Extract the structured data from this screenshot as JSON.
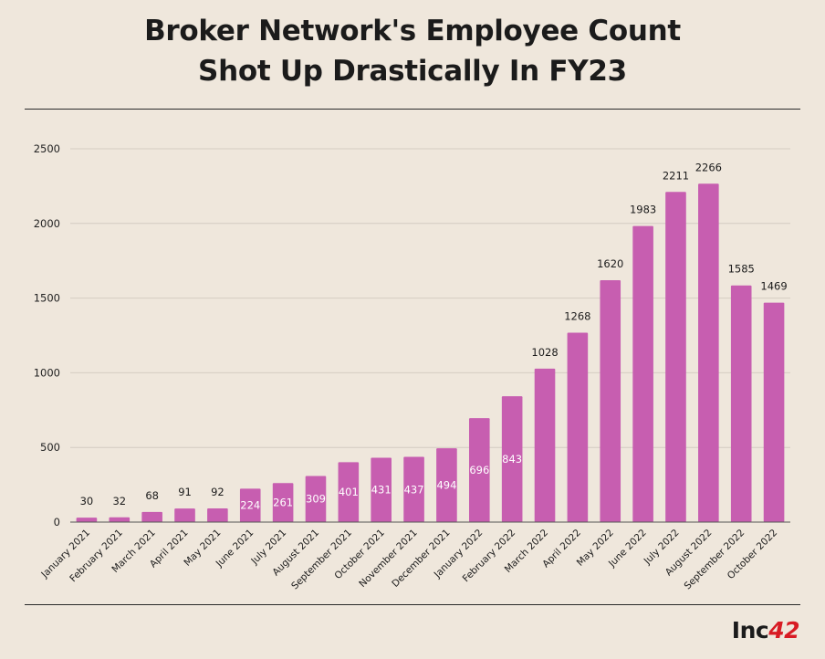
{
  "header": {
    "title_line1": "Broker Network's Employee Count",
    "title_line2": "Shot Up Drastically In FY23"
  },
  "brand": {
    "logo_text": "Inc",
    "logo_number": "42",
    "logo_color": "#d81b24"
  },
  "colors": {
    "bar": "#c75eb0",
    "background": "#efe7dc",
    "grid": "#d4ccc2"
  },
  "chart_data": {
    "type": "bar",
    "title": "Broker Network's Employee Count Shot Up Drastically In FY23",
    "xlabel": "",
    "ylabel": "",
    "ylim": [
      0,
      2500
    ],
    "yticks": [
      0,
      500,
      1000,
      1500,
      2000,
      2500
    ],
    "grid": true,
    "categories": [
      "January 2021",
      "February 2021",
      "March 2021",
      "April 2021",
      "May 2021",
      "June 2021",
      "July 2021",
      "August 2021",
      "September 2021",
      "October 2021",
      "November 2021",
      "December 2021",
      "January 2022",
      "February 2022",
      "March 2022",
      "April 2022",
      "May 2022",
      "June 2022",
      "July 2022",
      "August 2022",
      "September 2022",
      "October 2022"
    ],
    "values": [
      30,
      32,
      68,
      91,
      92,
      224,
      261,
      309,
      401,
      431,
      437,
      494,
      696,
      843,
      1028,
      1268,
      1620,
      1983,
      2211,
      2266,
      1585,
      1469
    ]
  }
}
